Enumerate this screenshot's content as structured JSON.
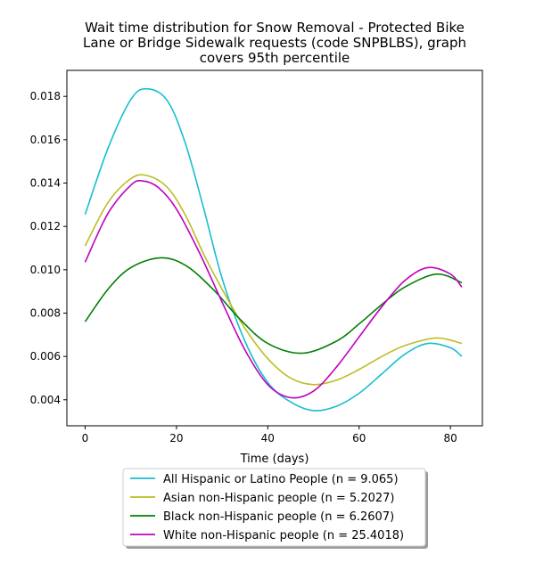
{
  "chart_data": {
    "type": "line",
    "title_lines": [
      "Wait time distribution  for Snow Removal - Protected Bike",
      "Lane or Bridge Sidewalk  requests (code SNPBLBS), graph",
      "covers 95th percentile"
    ],
    "xlabel": "Time (days)",
    "ylabel": "",
    "xlim": [
      -4,
      87
    ],
    "ylim": [
      0.0028,
      0.0192
    ],
    "x_ticks": [
      0,
      20,
      40,
      60,
      80
    ],
    "y_ticks": [
      0.004,
      0.006,
      0.008,
      0.01,
      0.012,
      0.014,
      0.016,
      0.018
    ],
    "y_tick_labels": [
      "0.004",
      "0.006",
      "0.008",
      "0.010",
      "0.012",
      "0.014",
      "0.016",
      "0.018"
    ],
    "legend_position": "below",
    "series": [
      {
        "name": "All Hispanic or Latino People (n = 9.065)",
        "color": "#17becf",
        "x": [
          0,
          5,
          10,
          13.5,
          18,
          22,
          26,
          30,
          35,
          40,
          45,
          50,
          55,
          60,
          65,
          70,
          75,
          80,
          82.5
        ],
        "values": [
          0.01255,
          0.0156,
          0.01785,
          0.01835,
          0.0178,
          0.0158,
          0.0128,
          0.0096,
          0.0067,
          0.0048,
          0.0039,
          0.0035,
          0.0037,
          0.0043,
          0.0052,
          0.0061,
          0.0066,
          0.0064,
          0.006
        ]
      },
      {
        "name": "Asian non-Hispanic people (n = 5.2027)",
        "color": "#bcbd22",
        "x": [
          0,
          5,
          10,
          13.5,
          18,
          22,
          26,
          30,
          35,
          40,
          45,
          50,
          55,
          60,
          65,
          70,
          77,
          82.5
        ],
        "values": [
          0.0111,
          0.0131,
          0.0142,
          0.01435,
          0.0138,
          0.0125,
          0.0107,
          0.0091,
          0.0073,
          0.0059,
          0.005,
          0.0047,
          0.0049,
          0.0054,
          0.006,
          0.0065,
          0.00685,
          0.0066
        ]
      },
      {
        "name": "Black non-Hispanic people (n = 6.2607)",
        "color": "#008000",
        "x": [
          0,
          5,
          10,
          16.5,
          22,
          28,
          34,
          40,
          47.5,
          55,
          60,
          65,
          70,
          77,
          82.5
        ],
        "values": [
          0.0076,
          0.0091,
          0.0101,
          0.01055,
          0.0102,
          0.0091,
          0.0077,
          0.0066,
          0.00615,
          0.0067,
          0.0075,
          0.0084,
          0.0092,
          0.0098,
          0.0094
        ]
      },
      {
        "name": "White non-Hispanic people (n = 25.4018)",
        "color": "#bf00bf",
        "x": [
          0,
          5,
          10,
          12.5,
          16,
          20,
          25,
          30,
          35,
          40,
          45,
          50,
          55,
          60,
          65,
          70,
          75,
          80,
          82.5
        ],
        "values": [
          0.01035,
          0.0126,
          0.0139,
          0.0141,
          0.0138,
          0.0128,
          0.0108,
          0.0085,
          0.0063,
          0.0047,
          0.0041,
          0.0044,
          0.0055,
          0.0069,
          0.0083,
          0.0095,
          0.0101,
          0.0098,
          0.0092
        ]
      }
    ]
  }
}
